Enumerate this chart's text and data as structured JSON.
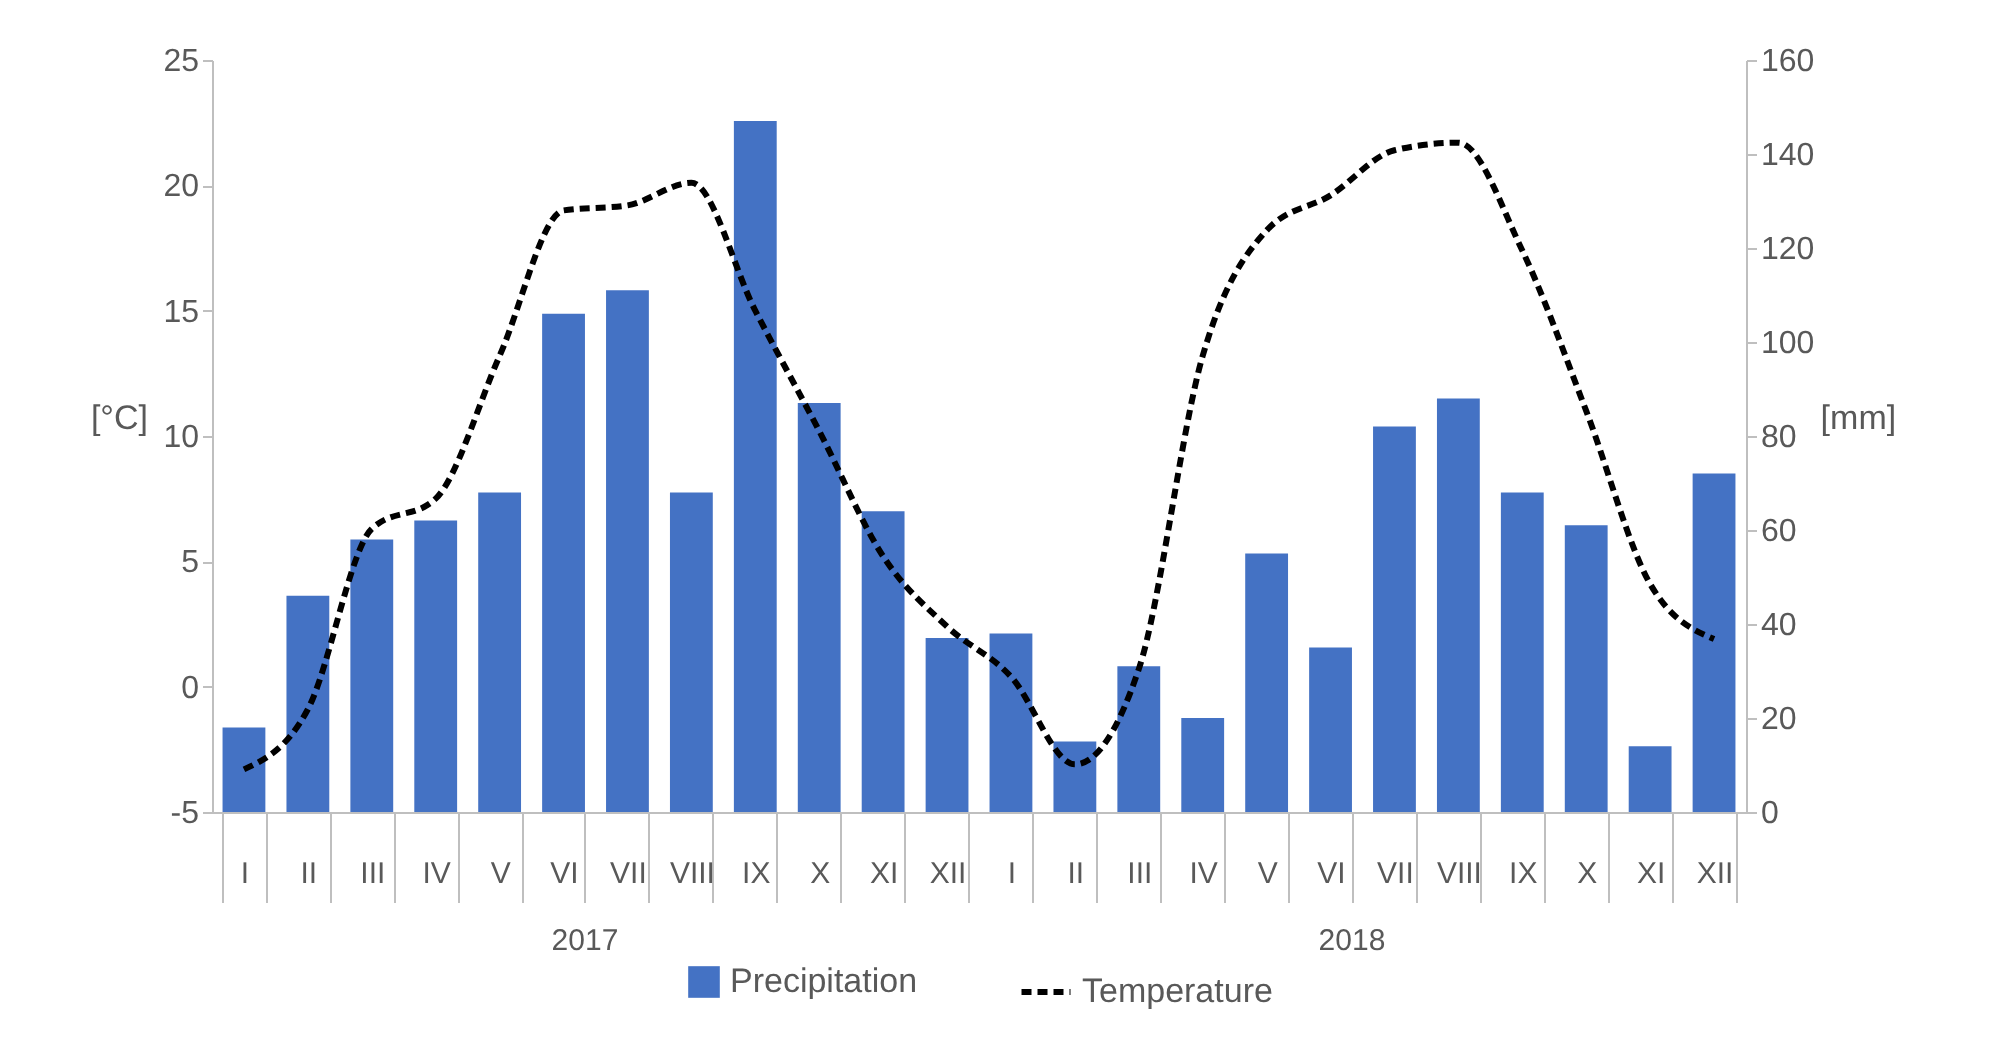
{
  "chart_data": {
    "type": "bar",
    "categories": [
      "I",
      "II",
      "III",
      "IV",
      "V",
      "VI",
      "VII",
      "VIII",
      "IX",
      "X",
      "XI",
      "XII",
      "I",
      "II",
      "III",
      "IV",
      "V",
      "VI",
      "VII",
      "VIII",
      "IX",
      "X",
      "XI",
      "XII"
    ],
    "series": [
      {
        "name": "Precipitation",
        "axis": "y2",
        "color": "#4472c4",
        "values": [
          18,
          46,
          58,
          62,
          68,
          106,
          111,
          68,
          147,
          87,
          64,
          37,
          38,
          15,
          31,
          20,
          55,
          35,
          82,
          88,
          68,
          61,
          14,
          72
        ]
      },
      {
        "name": "Temperature",
        "type": "line",
        "axis": "y",
        "color": "#000000",
        "line_style": "dashed",
        "values": [
          -3.3,
          -0.9,
          6.3,
          7.5,
          13.2,
          19.0,
          19.2,
          20.1,
          15.0,
          10.2,
          5.2,
          2.4,
          0.4,
          -3.1,
          0.7,
          13.2,
          18.2,
          19.6,
          21.4,
          21.7,
          17.4,
          11.0,
          4.1,
          1.9
        ]
      }
    ],
    "ylabel": "[°C]",
    "y2label": "[mm]",
    "ylim": [
      -5,
      25
    ],
    "yticks": [
      -5,
      0,
      5,
      10,
      15,
      20,
      25
    ],
    "y2lim": [
      0,
      160
    ],
    "y2ticks": [
      0,
      20,
      40,
      60,
      80,
      100,
      120,
      140,
      160
    ],
    "annotations": [
      "2017",
      "2018"
    ],
    "grid": false,
    "legend": "bottom"
  }
}
